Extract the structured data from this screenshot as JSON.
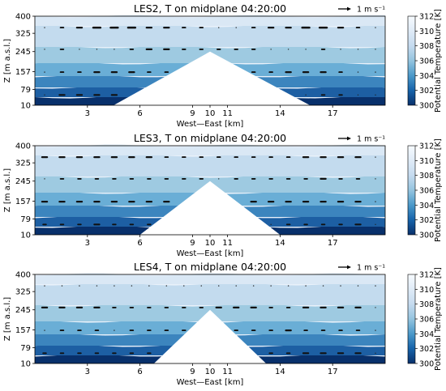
{
  "chart_data": [
    {
      "type": "contour",
      "title": "LES2, T on midplane 04:20:00",
      "xlabel": "West—East [km]",
      "ylabel": "Z [m a.s.l.]",
      "xticks": [
        "3",
        "6",
        "9",
        "10",
        "11",
        "14",
        "17"
      ],
      "xtick_values": [
        3,
        6,
        9,
        10,
        11,
        14,
        17
      ],
      "yticks": [
        "10",
        "79",
        "157",
        "245",
        "325",
        "400"
      ],
      "ytick_values": [
        10,
        79,
        157,
        245,
        325,
        400
      ],
      "xlim": [
        0,
        20
      ],
      "ylim": [
        10,
        400
      ],
      "quiver_key": "1 m s⁻¹",
      "colorbar": {
        "label": "Potential Temperature [K]",
        "ticks": [
          "300",
          "302",
          "304",
          "306",
          "308",
          "310",
          "312"
        ],
        "range": [
          300,
          312
        ]
      },
      "terrain": {
        "left_base_km": 4.5,
        "peak_km": 10,
        "peak_z": 245,
        "right_base_km": 15.7
      },
      "arrow_rows": [
        {
          "z": 350,
          "sizes": [
            0,
            1,
            2,
            3,
            3,
            3,
            2,
            2,
            1,
            1,
            0,
            0,
            1,
            2,
            2,
            3,
            3,
            2,
            1,
            0
          ]
        },
        {
          "z": 255,
          "sizes": [
            0,
            1,
            0,
            0,
            0,
            1,
            2,
            2,
            1,
            1,
            1,
            1,
            1,
            0,
            0,
            0,
            1,
            0,
            0,
            0
          ]
        },
        {
          "z": 155,
          "sizes": [
            0,
            1,
            1,
            2,
            2,
            2,
            1,
            1,
            1,
            1,
            0,
            1,
            1,
            1,
            2,
            2,
            2,
            1,
            0,
            0
          ]
        },
        {
          "z": 55,
          "sizes": [
            0,
            2,
            2,
            2,
            2,
            2,
            2,
            1,
            1,
            0,
            0,
            0,
            0,
            0,
            1,
            0,
            1,
            1,
            0,
            0
          ]
        }
      ]
    },
    {
      "type": "contour",
      "title": "LES3, T on midplane 04:20:00",
      "xlabel": "West—East [km]",
      "ylabel": "Z [m a.s.l.]",
      "xticks": [
        "3",
        "6",
        "9",
        "10",
        "11",
        "14",
        "17"
      ],
      "xtick_values": [
        3,
        6,
        9,
        10,
        11,
        14,
        17
      ],
      "yticks": [
        "10",
        "79",
        "157",
        "245",
        "325",
        "400"
      ],
      "ytick_values": [
        10,
        79,
        157,
        245,
        325,
        400
      ],
      "xlim": [
        0,
        20
      ],
      "ylim": [
        10,
        400
      ],
      "quiver_key": "1 m s⁻¹",
      "colorbar": {
        "label": "Potential Temperature [K]",
        "ticks": [
          "300",
          "302",
          "304",
          "306",
          "308",
          "310",
          "312"
        ],
        "range": [
          300,
          312
        ]
      },
      "terrain": {
        "left_base_km": 6.0,
        "peak_km": 10,
        "peak_z": 245,
        "right_base_km": 14.0
      },
      "arrow_rows": [
        {
          "z": 350,
          "sizes": [
            2,
            2,
            2,
            2,
            2,
            2,
            2,
            1,
            1,
            1,
            1,
            1,
            1,
            1,
            1,
            2,
            2,
            2,
            2,
            0
          ]
        },
        {
          "z": 255,
          "sizes": [
            0,
            1,
            1,
            1,
            1,
            1,
            1,
            1,
            1,
            1,
            0,
            1,
            1,
            1,
            1,
            1,
            2,
            1,
            1,
            0
          ]
        },
        {
          "z": 155,
          "sizes": [
            2,
            2,
            2,
            2,
            2,
            2,
            2,
            2,
            2,
            1,
            0,
            1,
            2,
            2,
            2,
            2,
            2,
            2,
            2,
            0
          ]
        },
        {
          "z": 55,
          "sizes": [
            1,
            1,
            1,
            2,
            1,
            1,
            1,
            0,
            0,
            0,
            0,
            0,
            0,
            0,
            1,
            1,
            1,
            1,
            2,
            0
          ]
        }
      ]
    },
    {
      "type": "contour",
      "title": "LES4, T on midplane 04:20:00",
      "xlabel": "West—East [km]",
      "ylabel": "Z [m a.s.l.]",
      "xticks": [
        "3",
        "6",
        "9",
        "10",
        "11",
        "14",
        "17"
      ],
      "xtick_values": [
        3,
        6,
        9,
        10,
        11,
        14,
        17
      ],
      "yticks": [
        "10",
        "79",
        "157",
        "245",
        "325",
        "400"
      ],
      "ytick_values": [
        10,
        79,
        157,
        245,
        325,
        400
      ],
      "xlim": [
        0,
        20
      ],
      "ylim": [
        10,
        400
      ],
      "quiver_key": "1 m s⁻¹",
      "colorbar": {
        "label": "Potential Temperature [K]",
        "ticks": [
          "300",
          "302",
          "304",
          "306",
          "308",
          "310",
          "312"
        ],
        "range": [
          300,
          312
        ]
      },
      "terrain": {
        "left_base_km": 6.8,
        "peak_km": 10,
        "peak_z": 245,
        "right_base_km": 13.2
      },
      "arrow_rows": [
        {
          "z": 350,
          "sizes": [
            0,
            0,
            0,
            0,
            0,
            0,
            0,
            0,
            0,
            0,
            0,
            0,
            0,
            0,
            0,
            0,
            0,
            0,
            0,
            0
          ]
        },
        {
          "z": 255,
          "sizes": [
            2,
            2,
            2,
            2,
            1,
            1,
            1,
            1,
            1,
            1,
            2,
            2,
            2,
            1,
            1,
            2,
            2,
            2,
            2,
            0
          ]
        },
        {
          "z": 155,
          "sizes": [
            0,
            1,
            1,
            1,
            0,
            1,
            1,
            1,
            1,
            0,
            0,
            1,
            1,
            1,
            2,
            1,
            1,
            1,
            1,
            0
          ]
        },
        {
          "z": 55,
          "sizes": [
            1,
            1,
            1,
            1,
            1,
            1,
            1,
            0,
            0,
            0,
            0,
            0,
            0,
            1,
            1,
            2,
            2,
            2,
            2,
            0
          ]
        }
      ]
    }
  ]
}
